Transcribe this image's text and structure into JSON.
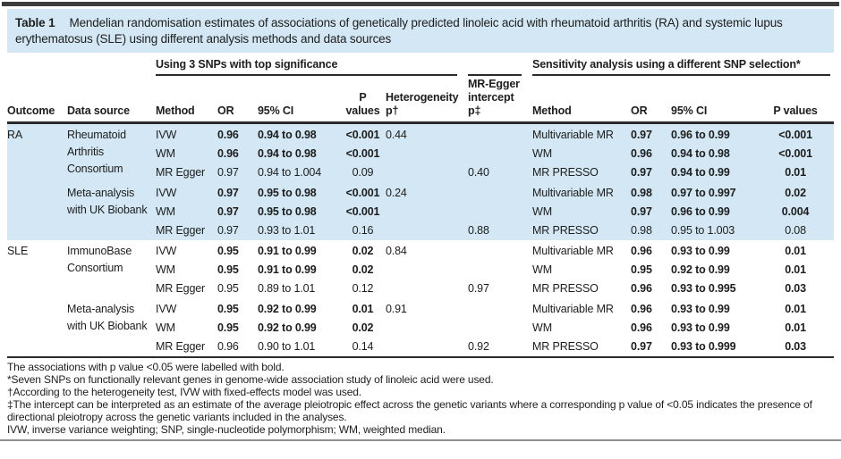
{
  "colors": {
    "accent_blue": "#d3e8f4",
    "rule_dark": "#2a2a2a",
    "rule_gray": "#8f8f8f",
    "top_bar": "#3d3d3d"
  },
  "caption": {
    "label": "Table 1",
    "text": "Mendelian randomisation estimates of associations of genetically predicted linoleic acid with rheumatoid arthritis (RA) and systemic lupus erythematosus (SLE) using different analysis methods and data sources"
  },
  "table": {
    "group_headers": {
      "primary": "Using 3 SNPs with top significance",
      "sensitivity": "Sensitivity analysis using a different SNP selection*"
    },
    "columns": [
      "Outcome",
      "Data source",
      "Method",
      "OR",
      "95% CI",
      "P values",
      "Heterogeneity p†",
      "MR-Egger intercept p‡",
      "Method",
      "OR",
      "95% CI",
      "P values"
    ],
    "rows": [
      {
        "outcome": "RA",
        "outcome_span": 6,
        "source": "Rheumatoid Arthritis Consortium",
        "source_span": 3,
        "method": "IVW",
        "or": "0.96",
        "ci": "0.94 to 0.98",
        "p": "<0.001",
        "het": "0.44",
        "egger": "",
        "s_method": "Multivariable MR",
        "s_or": "0.97",
        "s_ci": "0.96 to 0.99",
        "s_p": "<0.001",
        "bold": true,
        "s_bold": true
      },
      {
        "method": "WM",
        "or": "0.96",
        "ci": "0.94 to 0.98",
        "p": "<0.001",
        "het": "",
        "egger": "",
        "s_method": "WM",
        "s_or": "0.96",
        "s_ci": "0.94 to 0.98",
        "s_p": "<0.001",
        "bold": true,
        "s_bold": true
      },
      {
        "method": "MR Egger",
        "or": "0.97",
        "ci": "0.94 to 1.004",
        "p": "0.09",
        "het": "",
        "egger": "0.40",
        "s_method": "MR PRESSO",
        "s_or": "0.97",
        "s_ci": "0.94 to 0.99",
        "s_p": "0.01",
        "bold": false,
        "s_bold": true
      },
      {
        "source": "Meta-analysis with UK Biobank",
        "source_span": 3,
        "method": "IVW",
        "or": "0.97",
        "ci": "0.95 to 0.98",
        "p": "<0.001",
        "het": "0.24",
        "egger": "",
        "s_method": "Multivariable MR",
        "s_or": "0.98",
        "s_ci": "0.97 to 0.997",
        "s_p": "0.02",
        "bold": true,
        "s_bold": true
      },
      {
        "method": "WM",
        "or": "0.97",
        "ci": "0.95 to 0.98",
        "p": "<0.001",
        "het": "",
        "egger": "",
        "s_method": "WM",
        "s_or": "0.97",
        "s_ci": "0.96 to 0.99",
        "s_p": "0.004",
        "bold": true,
        "s_bold": true
      },
      {
        "method": "MR Egger",
        "or": "0.97",
        "ci": "0.93 to 1.01",
        "p": "0.16",
        "het": "",
        "egger": "0.88",
        "s_method": "MR PRESSO",
        "s_or": "0.98",
        "s_ci": "0.95 to 1.003",
        "s_p": "0.08",
        "bold": false,
        "s_bold": false
      },
      {
        "outcome": "SLE",
        "outcome_span": 6,
        "source": "ImmunoBase Consortium",
        "source_span": 3,
        "method": "IVW",
        "or": "0.95",
        "ci": "0.91 to 0.99",
        "p": "0.02",
        "het": "0.84",
        "egger": "",
        "s_method": "Multivariable MR",
        "s_or": "0.96",
        "s_ci": "0.93 to 0.99",
        "s_p": "0.01",
        "bold": true,
        "s_bold": true
      },
      {
        "method": "WM",
        "or": "0.95",
        "ci": "0.91 to 0.99",
        "p": "0.02",
        "het": "",
        "egger": "",
        "s_method": "WM",
        "s_or": "0.95",
        "s_ci": "0.92 to 0.99",
        "s_p": "0.01",
        "bold": true,
        "s_bold": true
      },
      {
        "method": "MR Egger",
        "or": "0.95",
        "ci": "0.89 to 1.01",
        "p": "0.12",
        "het": "",
        "egger": "0.97",
        "s_method": "MR PRESSO",
        "s_or": "0.96",
        "s_ci": "0.93 to 0.995",
        "s_p": "0.03",
        "bold": false,
        "s_bold": true
      },
      {
        "source": "Meta-analysis with UK Biobank",
        "source_span": 3,
        "method": "IVW",
        "or": "0.95",
        "ci": "0.92 to 0.99",
        "p": "0.01",
        "het": "0.91",
        "egger": "",
        "s_method": "Multivariable MR",
        "s_or": "0.96",
        "s_ci": "0.93 to 0.99",
        "s_p": "0.01",
        "bold": true,
        "s_bold": true
      },
      {
        "method": "WM",
        "or": "0.95",
        "ci": "0.92 to 0.99",
        "p": "0.02",
        "het": "",
        "egger": "",
        "s_method": "WM",
        "s_or": "0.96",
        "s_ci": "0.93 to 0.99",
        "s_p": "0.01",
        "bold": true,
        "s_bold": true
      },
      {
        "method": "MR Egger",
        "or": "0.96",
        "ci": "0.90 to 1.01",
        "p": "0.14",
        "het": "",
        "egger": "0.92",
        "s_method": "MR PRESSO",
        "s_or": "0.97",
        "s_ci": "0.93 to 0.999",
        "s_p": "0.03",
        "bold": false,
        "s_bold": true
      }
    ]
  },
  "footnotes": [
    "The associations with p value <0.05 were labelled with bold.",
    "*Seven SNPs on functionally relevant genes in genome-wide association study of linoleic acid were used.",
    "†According to the heterogeneity test, IVW with fixed-effects model was used.",
    "‡The intercept can be interpreted as an estimate of the average pleiotropic effect across the genetic variants where a corresponding p value of <0.05 indicates the presence of directional pleiotropy across the genetic variants included in the analyses.",
    "IVW, inverse variance weighting; SNP, single-nucleotide polymorphism; WM, weighted median."
  ]
}
